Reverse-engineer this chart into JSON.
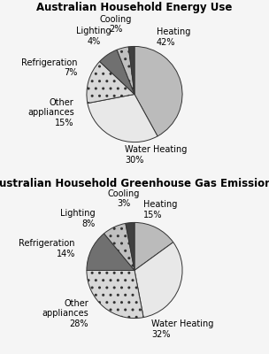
{
  "chart1": {
    "title": "Australian Household Energy Use",
    "labels": [
      "Heating",
      "Water Heating",
      "Other\nappliances",
      "Refrigeration",
      "Lighting",
      "Cooling"
    ],
    "values": [
      42,
      30,
      15,
      7,
      4,
      2
    ],
    "colors": [
      "#bbbbbb",
      "#e8e8e8",
      "#d8d8d8",
      "#707070",
      "#c0c0c0",
      "#404040"
    ],
    "hatches": [
      "",
      "",
      "..",
      "",
      "..",
      ""
    ],
    "label_angles_deg": [
      69,
      261,
      197,
      155,
      130,
      107
    ],
    "label_radii": [
      1.28,
      1.28,
      1.32,
      1.32,
      1.32,
      1.32
    ],
    "label_ha": [
      "left",
      "left",
      "right",
      "right",
      "center",
      "center"
    ],
    "label_va": [
      "center",
      "center",
      "center",
      "center",
      "bottom",
      "bottom"
    ]
  },
  "chart2": {
    "title": "Australian Household Greenhouse Gas Emissions",
    "labels": [
      "Heating",
      "Water Heating",
      "Other\nappliances",
      "Refrigeration",
      "Lighting",
      "Cooling"
    ],
    "values": [
      15,
      32,
      28,
      14,
      8,
      3
    ],
    "colors": [
      "#bbbbbb",
      "#e8e8e8",
      "#d8d8d8",
      "#707070",
      "#c0c0c0",
      "#404040"
    ],
    "hatches": [
      "",
      "",
      "..",
      "",
      "..",
      ""
    ],
    "label_angles_deg": [
      82,
      286,
      223,
      160,
      127,
      100
    ],
    "label_radii": [
      1.28,
      1.28,
      1.32,
      1.32,
      1.35,
      1.32
    ],
    "label_ha": [
      "left",
      "left",
      "right",
      "right",
      "right",
      "center"
    ],
    "label_va": [
      "center",
      "center",
      "center",
      "center",
      "center",
      "bottom"
    ]
  },
  "background_color": "#f5f5f5",
  "title_fontsize": 8.5,
  "label_fontsize": 7.0
}
